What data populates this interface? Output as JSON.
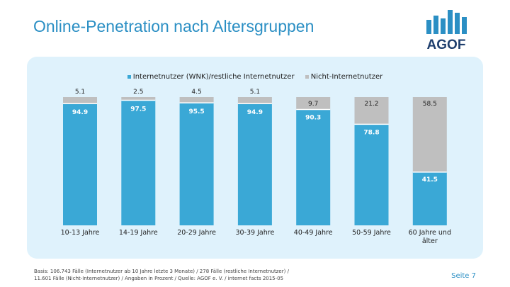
{
  "title": "Online-Penetration nach Altersgruppen",
  "logo_text": "AGOF",
  "footnote": [
    "Basis: 106.743 Fälle (Internetnutzer ab 10 Jahre letzte 3 Monate) / 278 Fälle (restliche Internetnutzer) /",
    "11.601 Fälle (Nicht-Internetnutzer) / Angaben in Prozent / Quelle: AGOF e. V. / internet facts 2015-05"
  ],
  "page_label": "Seite 7",
  "chart_data": {
    "type": "bar",
    "stacked": true,
    "categories": [
      "10-13 Jahre",
      "14-19 Jahre",
      "20-29 Jahre",
      "30-39 Jahre",
      "40-49 Jahre",
      "50-59 Jahre",
      "60 Jahre und älter"
    ],
    "series": [
      {
        "name": "Internetnutzer (WNK)/restliche Internetnutzer",
        "color": "#3aa8d6",
        "values": [
          94.9,
          97.5,
          95.5,
          94.9,
          90.3,
          78.8,
          41.5
        ]
      },
      {
        "name": "Nicht-Internetnutzer",
        "color": "#bfbfbf",
        "values": [
          5.1,
          2.5,
          4.5,
          5.1,
          9.7,
          21.2,
          58.5
        ]
      }
    ],
    "ylim": [
      0,
      100
    ],
    "legend": "top",
    "grid": false
  }
}
